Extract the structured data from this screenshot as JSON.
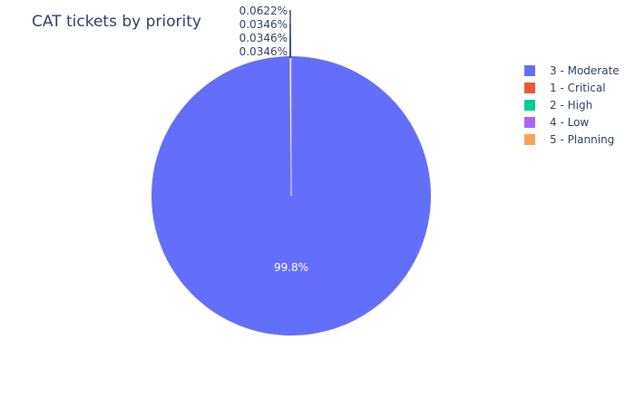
{
  "chart_data": {
    "type": "pie",
    "title": "CAT tickets by priority",
    "slices": [
      {
        "label": "3 - Moderate",
        "percent": 99.8,
        "text": "99.8%",
        "color": "#636efa"
      },
      {
        "label": "1 - Critical",
        "percent": 0.0622,
        "text": "0.0622%",
        "color": "#ef553b"
      },
      {
        "label": "2 - High",
        "percent": 0.0346,
        "text": "0.0346%",
        "color": "#00cc96"
      },
      {
        "label": "4 - Low",
        "percent": 0.0346,
        "text": "0.0346%",
        "color": "#ab63fa"
      },
      {
        "label": "5 - Planning",
        "percent": 0.0346,
        "text": "0.0346%",
        "color": "#ffa15a"
      }
    ],
    "legend_position": "right"
  }
}
